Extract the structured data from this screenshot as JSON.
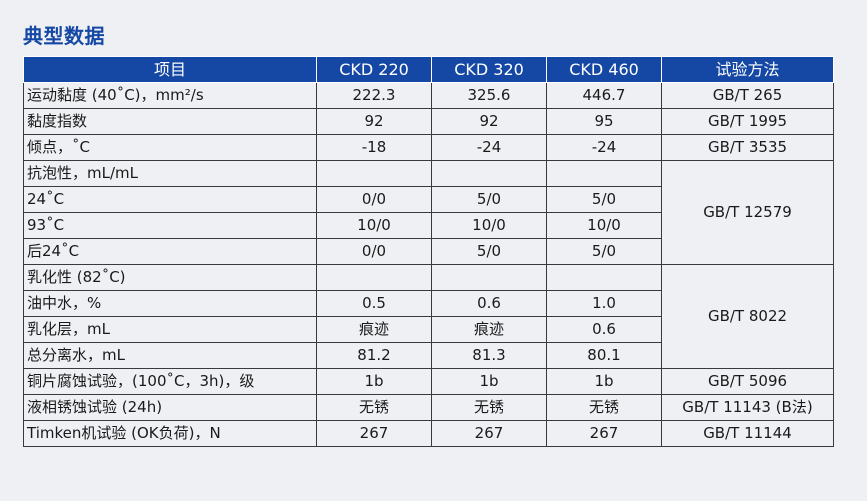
{
  "title": "典型数据",
  "table": {
    "headers": [
      "项目",
      "CKD 220",
      "CKD 320",
      "CKD 460",
      "试验方法"
    ],
    "rows": [
      {
        "name": "运动黏度 (40˚C)，mm²/s",
        "v1": "222.3",
        "v2": "325.6",
        "v3": "446.7",
        "method": "GB/T 265"
      },
      {
        "name": "黏度指数",
        "v1": "92",
        "v2": "92",
        "v3": "95",
        "method": "GB/T 1995"
      },
      {
        "name": "倾点，˚C",
        "v1": "-18",
        "v2": "-24",
        "v3": "-24",
        "method": "GB/T 3535"
      },
      {
        "name": "抗泡性，mL/mL",
        "v1": "",
        "v2": "",
        "v3": "",
        "method": "GB/T 12579"
      },
      {
        "name": "24˚C",
        "v1": "0/0",
        "v2": "5/0",
        "v3": "5/0"
      },
      {
        "name": "93˚C",
        "v1": "10/0",
        "v2": "10/0",
        "v3": "10/0"
      },
      {
        "name": "后24˚C",
        "v1": "0/0",
        "v2": "5/0",
        "v3": "5/0"
      },
      {
        "name": "乳化性 (82˚C)",
        "v1": "",
        "v2": "",
        "v3": "",
        "method": "GB/T 8022"
      },
      {
        "name": "油中水，%",
        "v1": "0.5",
        "v2": "0.6",
        "v3": "1.0"
      },
      {
        "name": "乳化层，mL",
        "v1": "痕迹",
        "v2": "痕迹",
        "v3": "0.6"
      },
      {
        "name": "总分离水，mL",
        "v1": "81.2",
        "v2": "81.3",
        "v3": "80.1"
      },
      {
        "name": "铜片腐蚀试验，(100˚C，3h)，级",
        "v1": "1b",
        "v2": "1b",
        "v3": "1b",
        "method": "GB/T 5096"
      },
      {
        "name": "液相锈蚀试验 (24h)",
        "v1": "无锈",
        "v2": "无锈",
        "v3": "无锈",
        "method": "GB/T 11143 (B法)"
      },
      {
        "name": "Timken机试验 (OK负荷)，N",
        "v1": "267",
        "v2": "267",
        "v3": "267",
        "method": "GB/T 11144"
      }
    ]
  }
}
